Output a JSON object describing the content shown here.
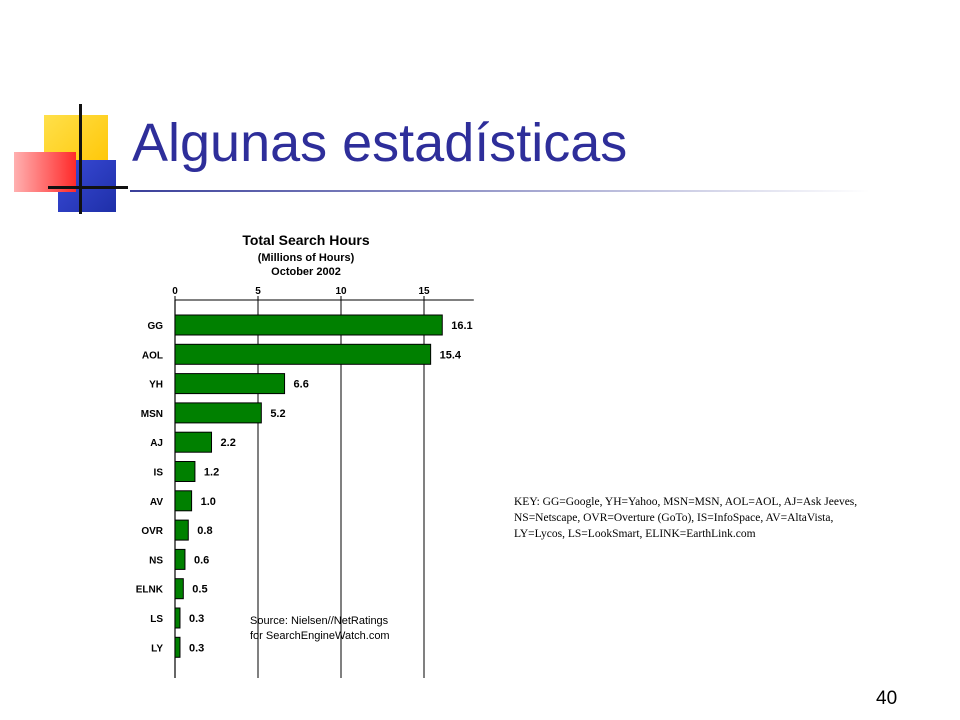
{
  "slide": {
    "title": "Algunas estadísticas",
    "page_number": "40",
    "key_lines": [
      "KEY: GG=Google, YH=Yahoo, MSN=MSN, AOL=AOL, AJ=Ask Jeeves,",
      "NS=Netscape, OVR=Overture (GoTo), IS=InfoSpace, AV=AltaVista,",
      "LY=Lycos, LS=LookSmart, ELINK=EarthLink.com"
    ]
  },
  "chart_data": {
    "type": "bar",
    "orientation": "horizontal",
    "title": "Total Search Hours",
    "subtitle_lines": [
      "(Millions of Hours)",
      "October 2002"
    ],
    "categories": [
      "GG",
      "AOL",
      "YH",
      "MSN",
      "AJ",
      "IS",
      "AV",
      "OVR",
      "NS",
      "ELNK",
      "LS",
      "LY"
    ],
    "values": [
      16.1,
      15.4,
      6.6,
      5.2,
      2.2,
      1.2,
      1.0,
      0.8,
      0.6,
      0.5,
      0.3,
      0.3
    ],
    "value_labels": [
      "16.1",
      "15.4",
      "6.6",
      "5.2",
      "2.2",
      "1.2",
      "1.0",
      "0.8",
      "0.6",
      "0.5",
      "0.3",
      "0.3"
    ],
    "x_ticks": [
      "0",
      "5",
      "10",
      "15"
    ],
    "xlim": [
      0,
      18
    ],
    "grid": true,
    "bar_color": "#008000",
    "source_lines": [
      "Source: Nielsen//NetRatings",
      "for SearchEngineWatch.com"
    ]
  }
}
